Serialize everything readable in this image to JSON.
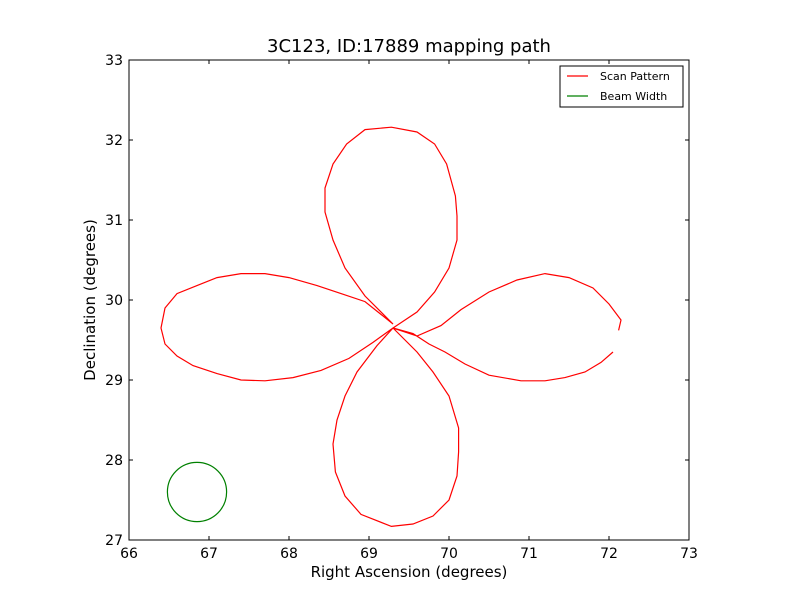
{
  "chart_data": {
    "type": "line",
    "title": "3C123, ID:17889 mapping path",
    "xlabel": "Right Ascension (degrees)",
    "ylabel": "Declination (degrees)",
    "xlim": [
      66,
      73
    ],
    "ylim": [
      27,
      33
    ],
    "xticks": [
      "66",
      "67",
      "68",
      "69",
      "70",
      "71",
      "72",
      "73"
    ],
    "yticks": [
      "27",
      "28",
      "29",
      "30",
      "31",
      "32",
      "33"
    ],
    "grid": false,
    "legend_position": "top-right",
    "series": [
      {
        "name": "Scan Pattern",
        "color": "#ff0000",
        "points": [
          [
            72.05,
            29.35
          ],
          [
            71.9,
            29.22
          ],
          [
            71.7,
            29.1
          ],
          [
            71.45,
            29.03
          ],
          [
            71.2,
            28.99
          ],
          [
            70.9,
            28.99
          ],
          [
            70.5,
            29.06
          ],
          [
            70.2,
            29.2
          ],
          [
            69.95,
            29.35
          ],
          [
            69.75,
            29.45
          ],
          [
            69.55,
            29.58
          ],
          [
            69.3,
            29.65
          ],
          [
            69.6,
            29.85
          ],
          [
            69.82,
            30.1
          ],
          [
            70.0,
            30.4
          ],
          [
            70.1,
            30.75
          ],
          [
            70.1,
            31.05
          ],
          [
            70.08,
            31.3
          ],
          [
            69.97,
            31.7
          ],
          [
            69.82,
            31.95
          ],
          [
            69.6,
            32.1
          ],
          [
            69.28,
            32.16
          ],
          [
            68.95,
            32.13
          ],
          [
            68.72,
            31.95
          ],
          [
            68.55,
            31.7
          ],
          [
            68.45,
            31.4
          ],
          [
            68.45,
            31.1
          ],
          [
            68.55,
            30.75
          ],
          [
            68.7,
            30.4
          ],
          [
            68.95,
            30.05
          ],
          [
            69.3,
            29.7
          ],
          [
            68.95,
            29.98
          ],
          [
            68.65,
            30.08
          ],
          [
            68.35,
            30.18
          ],
          [
            68.0,
            30.28
          ],
          [
            67.7,
            30.33
          ],
          [
            67.4,
            30.33
          ],
          [
            67.1,
            30.28
          ],
          [
            66.85,
            30.18
          ],
          [
            66.6,
            30.08
          ],
          [
            66.45,
            29.9
          ],
          [
            66.4,
            29.65
          ],
          [
            66.45,
            29.45
          ],
          [
            66.6,
            29.3
          ],
          [
            66.8,
            29.18
          ],
          [
            67.1,
            29.08
          ],
          [
            67.4,
            29.0
          ],
          [
            67.7,
            28.99
          ],
          [
            68.05,
            29.03
          ],
          [
            68.4,
            29.12
          ],
          [
            68.75,
            29.27
          ],
          [
            69.05,
            29.47
          ],
          [
            69.3,
            29.65
          ],
          [
            69.1,
            29.43
          ],
          [
            68.85,
            29.1
          ],
          [
            68.7,
            28.8
          ],
          [
            68.6,
            28.5
          ],
          [
            68.55,
            28.2
          ],
          [
            68.58,
            27.85
          ],
          [
            68.7,
            27.55
          ],
          [
            68.9,
            27.32
          ],
          [
            69.28,
            27.17
          ],
          [
            69.55,
            27.2
          ],
          [
            69.8,
            27.3
          ],
          [
            70.0,
            27.5
          ],
          [
            70.1,
            27.8
          ],
          [
            70.12,
            28.1
          ],
          [
            70.12,
            28.4
          ],
          [
            70.0,
            28.8
          ],
          [
            69.8,
            29.1
          ],
          [
            69.6,
            29.35
          ],
          [
            69.3,
            29.65
          ],
          [
            69.6,
            29.55
          ],
          [
            69.9,
            29.68
          ],
          [
            70.15,
            29.88
          ],
          [
            70.5,
            30.1
          ],
          [
            70.85,
            30.25
          ],
          [
            71.2,
            30.33
          ],
          [
            71.5,
            30.28
          ],
          [
            71.8,
            30.15
          ],
          [
            72.0,
            29.95
          ],
          [
            72.15,
            29.75
          ],
          [
            72.12,
            29.62
          ]
        ]
      },
      {
        "name": "Beam Width",
        "color": "#008000",
        "shape": "circle",
        "center": [
          66.85,
          27.6
        ],
        "radius_deg_x": 0.37,
        "radius_deg_y": 0.37
      }
    ]
  }
}
